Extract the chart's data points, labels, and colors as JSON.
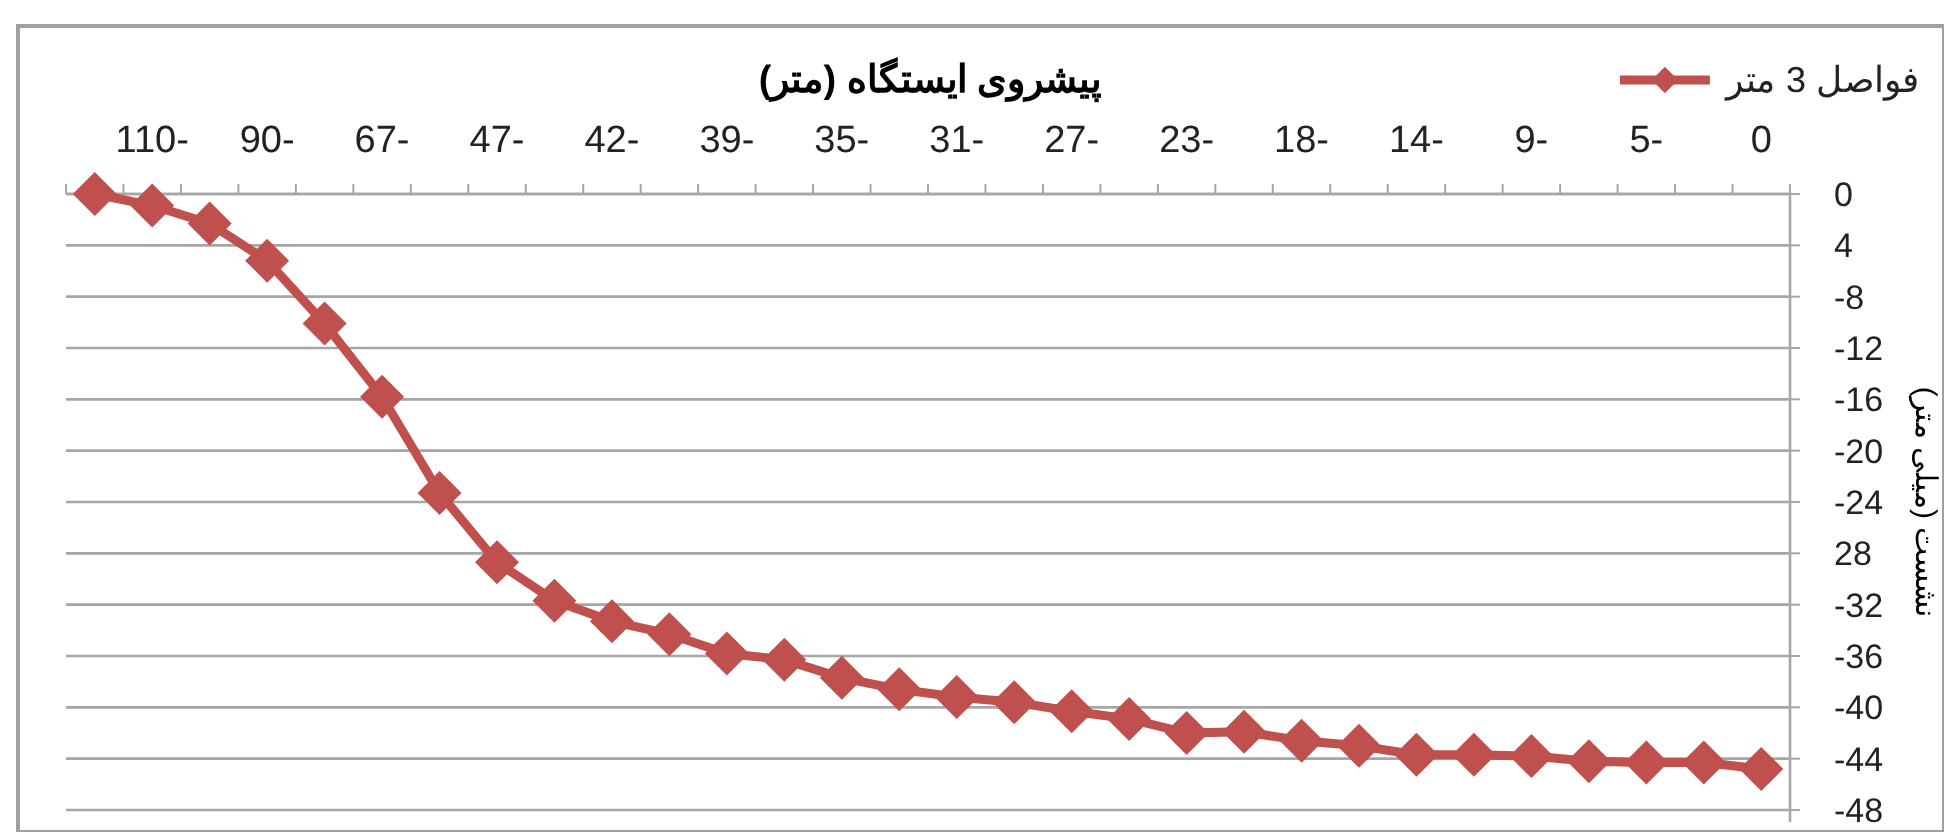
{
  "chart_data": {
    "type": "line",
    "title": "پیشروی ایستگاه (متر)",
    "ylabel": "نشست (میلی متر)",
    "categories": [
      null,
      "110-",
      null,
      "90-",
      null,
      "67-",
      null,
      "47-",
      null,
      "42-",
      null,
      "39-",
      null,
      "35-",
      null,
      "31-",
      null,
      "27-",
      null,
      "23-",
      null,
      "18-",
      null,
      "14-",
      null,
      "9-",
      null,
      "5-",
      null,
      "0"
    ],
    "series": [
      {
        "name": "فواصل 3 متر",
        "color": "#c0504d",
        "values": [
          0,
          -0.9,
          -2.3,
          -5.2,
          -10.1,
          -15.8,
          -23.3,
          -28.7,
          -31.7,
          -33.3,
          -34.3,
          -35.8,
          -36.3,
          -37.7,
          -38.6,
          -39.2,
          -39.6,
          -40.3,
          -40.9,
          -42.0,
          -41.9,
          -42.6,
          -43.0,
          -43.7,
          -43.7,
          -43.8,
          -44.2,
          -44.3,
          -44.3,
          -44.8
        ]
      }
    ],
    "ylim": [
      -48,
      0
    ],
    "yticks": [
      0,
      {
        "value": -4,
        "label": "4"
      },
      -8,
      -12,
      -16,
      -20,
      -24,
      {
        "value": -28,
        "label": "28"
      },
      -32,
      -36,
      -40,
      -44,
      -48
    ],
    "grid": "y",
    "legend": "top right",
    "marker": "diamond",
    "line_style": "solid"
  }
}
